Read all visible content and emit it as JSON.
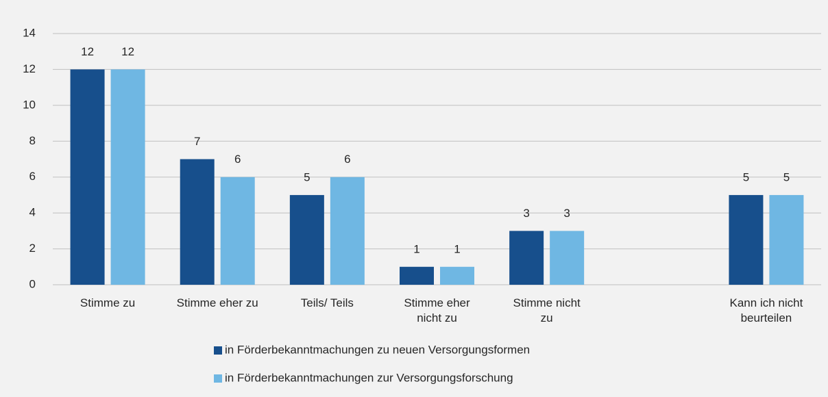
{
  "chart_data": {
    "type": "bar",
    "categories": [
      "Stimme zu",
      "Stimme eher zu",
      "Teils/ Teils",
      "Stimme eher\nnicht zu",
      "Stimme nicht\nzu",
      null,
      "Kann ich nicht\nbeurteilen"
    ],
    "series": [
      {
        "name": "in Förderbekanntmachungen zu neuen Versorgungsformen",
        "color": "#174f8c",
        "values": [
          12,
          7,
          5,
          1,
          3,
          null,
          5
        ]
      },
      {
        "name": "in Förderbekanntmachungen zur Versorgungsforschung",
        "color": "#6fb7e3",
        "values": [
          12,
          6,
          6,
          1,
          3,
          null,
          5
        ]
      }
    ],
    "ylim": [
      0,
      14
    ],
    "yticks": [
      0,
      2,
      4,
      6,
      8,
      10,
      12,
      14
    ],
    "grid": true,
    "legend": "bottom"
  }
}
